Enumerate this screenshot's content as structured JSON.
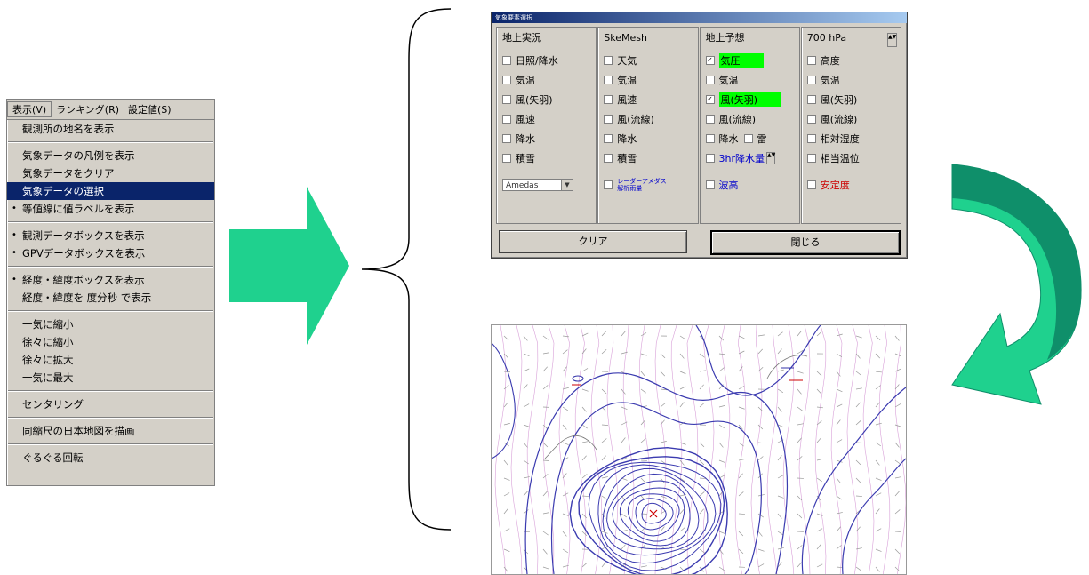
{
  "menu": {
    "menubar": [
      "表示(V)",
      "ランキング(R)",
      "設定値(S)"
    ],
    "items": [
      {
        "label": "観測所の地名を表示",
        "checked": false,
        "highlighted": false
      },
      {
        "sep": true
      },
      {
        "label": "気象データの凡例を表示",
        "checked": false,
        "highlighted": false
      },
      {
        "label": "気象データをクリア",
        "checked": false,
        "highlighted": false
      },
      {
        "label": "気象データの選択",
        "checked": false,
        "highlighted": true
      },
      {
        "label": "等値線に値ラベルを表示",
        "checked": true,
        "highlighted": false
      },
      {
        "sep": true
      },
      {
        "label": "観測データボックスを表示",
        "checked": true,
        "highlighted": false
      },
      {
        "label": "GPVデータボックスを表示",
        "checked": true,
        "highlighted": false
      },
      {
        "sep": true
      },
      {
        "label": "経度・緯度ボックスを表示",
        "checked": true,
        "highlighted": false
      },
      {
        "label": "経度・緯度を 度分秒 で表示",
        "checked": false,
        "highlighted": false
      },
      {
        "sep": true
      },
      {
        "label": "一気に縮小",
        "checked": false,
        "highlighted": false
      },
      {
        "label": "徐々に縮小",
        "checked": false,
        "highlighted": false
      },
      {
        "label": "徐々に拡大",
        "checked": false,
        "highlighted": false
      },
      {
        "label": "一気に最大",
        "checked": false,
        "highlighted": false
      },
      {
        "sep": true
      },
      {
        "label": "センタリング",
        "checked": false,
        "highlighted": false
      },
      {
        "sep": true
      },
      {
        "label": "同縮尺の日本地図を描画",
        "checked": false,
        "highlighted": false
      },
      {
        "sep": true
      },
      {
        "label": "ぐるぐる回転",
        "checked": false,
        "highlighted": false
      }
    ]
  },
  "dialog": {
    "title": "気象要素選択",
    "columns": [
      {
        "header": "地上実況",
        "items": [
          {
            "label": "日照/降水"
          },
          {
            "label": "気温"
          },
          {
            "label": "風(矢羽)"
          },
          {
            "label": "風速"
          },
          {
            "label": "降水"
          },
          {
            "label": "積雪"
          }
        ],
        "select": "Amedas"
      },
      {
        "header": "SkeMesh",
        "items": [
          {
            "label": "天気"
          },
          {
            "label": "気温"
          },
          {
            "label": "風速"
          },
          {
            "label": "風(流線)"
          },
          {
            "label": "降水"
          },
          {
            "label": "積雪"
          }
        ],
        "extra": "レーダーアメダス解析雨量"
      },
      {
        "header": "地上予想",
        "items": [
          {
            "label": "気圧",
            "checked": true,
            "green": true
          },
          {
            "label": "気温"
          },
          {
            "label": "風(矢羽)",
            "checked": true,
            "green": true
          },
          {
            "label": "風(流線)"
          },
          {
            "label": "降水",
            "sub": "雷"
          },
          {
            "label": "3hr降水量"
          }
        ],
        "extra": "波高"
      },
      {
        "header": "700 hPa",
        "items": [
          {
            "label": "高度"
          },
          {
            "label": "気温"
          },
          {
            "label": "風(矢羽)"
          },
          {
            "label": "風(流線)"
          },
          {
            "label": "相対湿度"
          },
          {
            "label": "相当温位"
          }
        ],
        "extra": "安定度"
      }
    ],
    "buttons": {
      "clear": "クリア",
      "close": "閉じる"
    }
  },
  "colors": {
    "arrow_green": "#1fd18e",
    "arrow_dark": "#0f8f6a",
    "menu_highlight": "#0a246a",
    "checkbox_highlight": "#00ff00",
    "contour": "#3b3bb0",
    "isobar_light": "#c878c8"
  }
}
